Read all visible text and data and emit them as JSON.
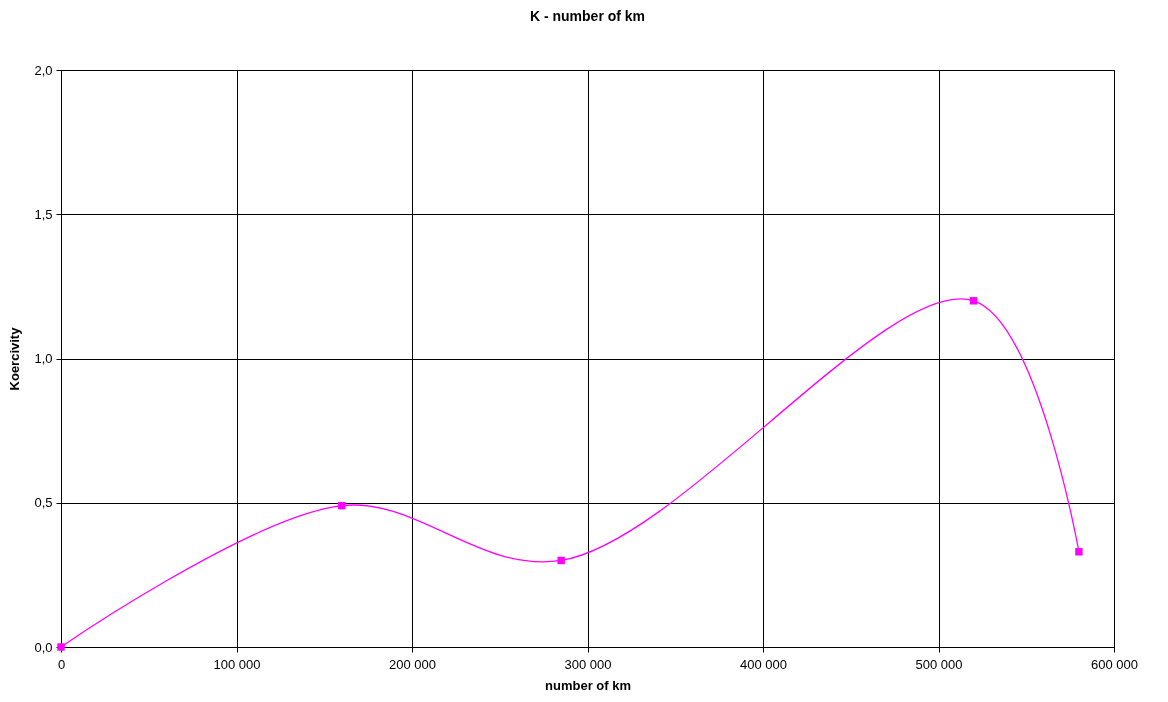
{
  "chart_data": {
    "type": "line",
    "title": "K - number of km",
    "xlabel": "number of km",
    "ylabel": "Koercivity",
    "x": [
      0,
      160000,
      285000,
      520000,
      580000
    ],
    "series": [
      {
        "color": "#ff00ff",
        "values": [
          0,
          0.49,
          0.3,
          1.2,
          0.33
        ]
      }
    ],
    "xlim": [
      0,
      600000
    ],
    "xticks": [
      0,
      {
        "value": 100000,
        "label": "100 000"
      },
      {
        "value": 200000,
        "label": "200 000"
      },
      {
        "value": 300000,
        "label": "300 000"
      },
      {
        "value": 400000,
        "label": "400 000"
      },
      {
        "value": 500000,
        "label": "500 000"
      },
      {
        "value": 600000,
        "label": "600 000"
      }
    ],
    "ylim": [
      0,
      2
    ],
    "yticks": [
      {
        "value": 0,
        "label": "0,0"
      },
      {
        "value": 0.5,
        "label": "0,5"
      },
      {
        "value": 1,
        "label": "1,0"
      },
      {
        "value": 1.5,
        "label": "1,5"
      },
      {
        "value": 2,
        "label": "2,0"
      }
    ],
    "grid": true,
    "marker": "square",
    "line_style": "solid"
  }
}
